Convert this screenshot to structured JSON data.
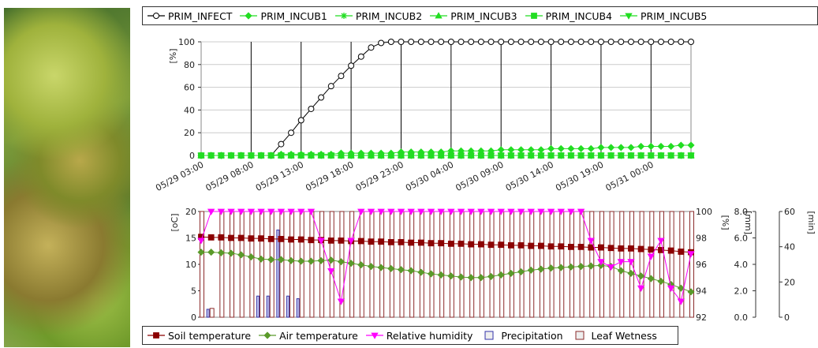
{
  "chart_data": [
    {
      "type": "line",
      "categories": [
        "05/29 03:00",
        null,
        null,
        null,
        null,
        "05/29 08:00",
        null,
        null,
        null,
        null,
        "05/29 13:00",
        null,
        null,
        null,
        null,
        "05/29 18:00",
        null,
        null,
        null,
        null,
        "05/29 23:00",
        null,
        null,
        null,
        null,
        "05/30 04:00",
        null,
        null,
        null,
        null,
        "05/30 09:00",
        null,
        null,
        null,
        null,
        "05/30 14:00",
        null,
        null,
        null,
        null,
        "05/30 19:00",
        null,
        null,
        null,
        null,
        "05/31 00:00",
        null,
        null,
        null,
        null
      ],
      "ylabel": "[%]",
      "ylim": [
        0,
        100
      ],
      "yticks": [
        0,
        20,
        40,
        60,
        80,
        100
      ],
      "grid": true,
      "series": [
        {
          "name": "PRIM_INFECT",
          "color": "#000000",
          "marker": "circle",
          "values": [
            0,
            0,
            0,
            0,
            0,
            0,
            0,
            0,
            10,
            20,
            31,
            41,
            51,
            61,
            70,
            79,
            87,
            95,
            99,
            100,
            100,
            100,
            100,
            100,
            100,
            100,
            100,
            100,
            100,
            100,
            100,
            100,
            100,
            100,
            100,
            100,
            100,
            100,
            100,
            100,
            100,
            100,
            100,
            100,
            100,
            100,
            100,
            100,
            100,
            100
          ]
        },
        {
          "name": "PRIM_INCUB1",
          "color": "#22dd22",
          "marker": "diamond",
          "values": [
            0,
            0,
            0,
            0,
            0,
            0,
            0,
            0,
            1,
            1,
            1,
            1,
            1,
            1,
            2,
            2,
            2,
            2,
            2,
            2,
            3,
            3,
            3,
            3,
            3,
            4,
            4,
            4,
            4,
            4,
            5,
            5,
            5,
            5,
            5,
            6,
            6,
            6,
            6,
            6,
            7,
            7,
            7,
            7,
            8,
            8,
            8,
            8,
            9,
            9
          ]
        },
        {
          "name": "PRIM_INCUB2",
          "color": "#22dd22",
          "marker": "asterisk",
          "values": [
            0,
            0,
            0,
            0,
            0,
            0,
            0,
            0,
            0,
            0,
            0,
            0,
            0,
            0,
            0,
            0,
            0,
            0,
            0,
            0,
            0,
            0,
            0,
            0,
            0,
            0,
            0,
            0,
            0,
            0,
            0,
            0,
            0,
            0,
            0,
            0,
            0,
            0,
            0,
            0,
            0,
            0,
            0,
            0,
            0,
            0,
            0,
            0,
            0,
            0
          ]
        },
        {
          "name": "PRIM_INCUB3",
          "color": "#22dd22",
          "marker": "triangle",
          "values": [
            0,
            0,
            0,
            0,
            0,
            0,
            0,
            0,
            0,
            0,
            0,
            0,
            0,
            0,
            0,
            0,
            0,
            0,
            0,
            0,
            0,
            0,
            0,
            0,
            0,
            0,
            0,
            0,
            0,
            0,
            0,
            0,
            0,
            0,
            0,
            0,
            0,
            0,
            0,
            0,
            0,
            0,
            0,
            0,
            0,
            0,
            0,
            0,
            0,
            0
          ]
        },
        {
          "name": "PRIM_INCUB4",
          "color": "#22dd22",
          "marker": "square",
          "values": [
            0,
            0,
            0,
            0,
            0,
            0,
            0,
            0,
            0,
            0,
            0,
            0,
            0,
            0,
            0,
            0,
            0,
            0,
            0,
            0,
            0,
            0,
            0,
            0,
            0,
            0,
            0,
            0,
            0,
            0,
            0,
            0,
            0,
            0,
            0,
            0,
            0,
            0,
            0,
            0,
            0,
            0,
            0,
            0,
            0,
            0,
            0,
            0,
            0,
            0
          ]
        },
        {
          "name": "PRIM_INCUB5",
          "color": "#22dd22",
          "marker": "triangle-down",
          "values": [
            0,
            0,
            0,
            0,
            0,
            0,
            0,
            0,
            0,
            0,
            0,
            0,
            0,
            0,
            0,
            0,
            0,
            0,
            0,
            0,
            0,
            0,
            0,
            0,
            0,
            0,
            0,
            0,
            0,
            0,
            0,
            0,
            0,
            0,
            0,
            0,
            0,
            0,
            0,
            0,
            0,
            0,
            0,
            0,
            0,
            0,
            0,
            0,
            0,
            0
          ]
        }
      ]
    },
    {
      "type": "combo",
      "ylabel": "[oC]",
      "ylim": [
        0,
        20
      ],
      "yticks": [
        0,
        5,
        10,
        15,
        20
      ],
      "y2label": "[%]",
      "y2lim": [
        92,
        100
      ],
      "y2ticks": [
        92,
        94,
        96,
        98,
        100
      ],
      "y3label": "[mm]",
      "y3lim": [
        0,
        8
      ],
      "y3ticks": [
        {
          "value": 0,
          "label": "0.0"
        },
        {
          "value": 2,
          "label": "2.0"
        },
        {
          "value": 4,
          "label": "4.0"
        },
        {
          "value": 6,
          "label": "6.0"
        },
        {
          "value": 8,
          "label": "8.0"
        }
      ],
      "y4label": "[min]",
      "y4lim": [
        0,
        60
      ],
      "y4ticks": [
        0,
        20,
        40,
        60
      ],
      "series": [
        {
          "name": "Soil temperature",
          "color": "#8b0000",
          "kind": "line",
          "marker": "square",
          "axis": "y",
          "values": [
            15.2,
            15.1,
            15.1,
            15.0,
            15.0,
            14.9,
            14.9,
            14.8,
            14.8,
            14.7,
            14.7,
            14.6,
            14.6,
            14.5,
            14.5,
            14.4,
            14.4,
            14.3,
            14.3,
            14.2,
            14.2,
            14.1,
            14.1,
            14.0,
            14.0,
            13.9,
            13.9,
            13.8,
            13.8,
            13.7,
            13.7,
            13.6,
            13.6,
            13.5,
            13.5,
            13.4,
            13.4,
            13.3,
            13.3,
            13.2,
            13.2,
            13.1,
            13.0,
            13.0,
            12.9,
            12.8,
            12.7,
            12.6,
            12.4,
            12.3
          ]
        },
        {
          "name": "Air temperature",
          "color": "#5a9a2a",
          "kind": "line",
          "marker": "diamond",
          "axis": "y",
          "values": [
            12.3,
            12.3,
            12.2,
            12.1,
            11.8,
            11.4,
            11.0,
            10.9,
            10.9,
            10.7,
            10.6,
            10.6,
            10.7,
            10.8,
            10.5,
            10.2,
            9.9,
            9.6,
            9.4,
            9.2,
            9.0,
            8.8,
            8.5,
            8.2,
            8.0,
            7.8,
            7.6,
            7.5,
            7.5,
            7.7,
            8.0,
            8.3,
            8.6,
            8.9,
            9.1,
            9.3,
            9.4,
            9.5,
            9.6,
            9.7,
            9.8,
            9.6,
            8.8,
            8.3,
            7.8,
            7.3,
            6.8,
            6.2,
            5.5,
            4.8
          ]
        },
        {
          "name": "Relative humidity",
          "color": "#ff00ff",
          "kind": "line",
          "marker": "triangle-down",
          "axis": "y2",
          "values": [
            97.8,
            100,
            100,
            100,
            100,
            100,
            100,
            100,
            100,
            100,
            100,
            100,
            97.8,
            95.5,
            93.2,
            97.8,
            100,
            100,
            100,
            100,
            100,
            100,
            100,
            100,
            100,
            100,
            100,
            100,
            100,
            100,
            100,
            100,
            100,
            100,
            100,
            100,
            100,
            100,
            100,
            97.8,
            96.2,
            95.8,
            96.2,
            96.2,
            94.2,
            96.6,
            97.8,
            94.2,
            93.2,
            96.8
          ]
        },
        {
          "name": "Precipitation",
          "color": "#3333aa",
          "kind": "bar",
          "axis": "y3",
          "values": [
            0,
            0.6,
            0,
            0,
            0,
            0,
            1.6,
            1.6,
            6.6,
            1.6,
            1.4,
            0,
            0,
            0,
            0,
            0,
            0,
            0,
            0,
            0,
            0,
            0,
            0,
            0,
            0,
            0,
            0,
            0,
            0,
            0,
            0,
            0,
            0,
            0,
            0,
            0,
            0,
            0,
            0,
            0,
            0,
            0,
            0,
            0,
            0,
            0,
            0,
            0,
            0,
            0
          ]
        },
        {
          "name": "Leaf Wetness",
          "color": "#8b2a2a",
          "kind": "bar",
          "axis": "y4",
          "values": [
            60,
            5,
            60,
            60,
            60,
            60,
            60,
            60,
            60,
            60,
            60,
            60,
            60,
            60,
            60,
            60,
            60,
            60,
            60,
            60,
            60,
            60,
            60,
            60,
            60,
            60,
            60,
            60,
            60,
            60,
            60,
            60,
            60,
            60,
            60,
            60,
            60,
            60,
            60,
            60,
            60,
            60,
            60,
            60,
            60,
            60,
            60,
            60,
            60,
            60
          ]
        }
      ]
    }
  ]
}
